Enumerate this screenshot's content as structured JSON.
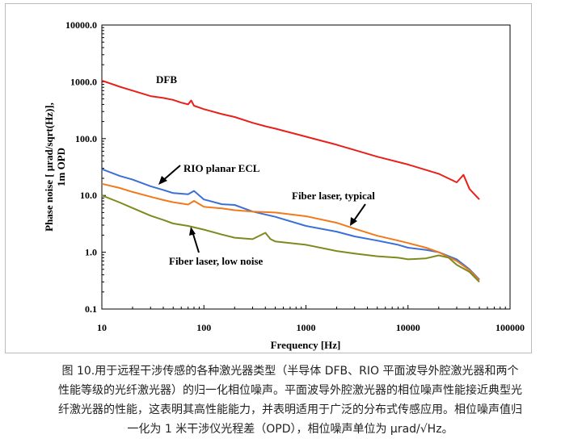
{
  "chart_data": {
    "type": "line",
    "xlabel": "Frequency [Hz]",
    "ylabel_line1": "Phase noise [ μrad/sqrt(Hz)],",
    "ylabel_line2": "1m OPD",
    "xscale": "log",
    "yscale": "log",
    "xlim": [
      10,
      100000
    ],
    "ylim": [
      0.1,
      10000
    ],
    "x_ticks": [
      "10",
      "100",
      "1000",
      "10000",
      "100000"
    ],
    "y_ticks": [
      "0.1",
      "1.0",
      "10.0",
      "100.0",
      "1000.0",
      "10000.0"
    ],
    "grid": false,
    "series": [
      {
        "name": "DFB",
        "color": "#e8201a",
        "x": [
          10,
          15,
          20,
          30,
          40,
          50,
          60,
          70,
          75,
          80,
          100,
          150,
          200,
          300,
          400,
          500,
          1000,
          2000,
          3000,
          5000,
          10000,
          20000,
          30000,
          35000,
          40000,
          50000
        ],
        "y": [
          1050,
          820,
          700,
          560,
          520,
          480,
          430,
          400,
          470,
          380,
          330,
          270,
          240,
          190,
          165,
          150,
          108,
          78,
          63,
          48,
          35,
          24,
          17,
          23,
          13,
          8.5
        ]
      },
      {
        "name": "RIO planar ECL",
        "color": "#3a6fd8",
        "x": [
          10,
          15,
          20,
          30,
          40,
          50,
          70,
          80,
          100,
          150,
          200,
          300,
          500,
          1000,
          2000,
          3000,
          5000,
          8000,
          10000,
          15000,
          20000,
          30000,
          40000,
          50000
        ],
        "y": [
          29,
          22,
          19,
          14.5,
          12.5,
          11,
          10.5,
          12,
          8.5,
          7,
          6.8,
          5.2,
          4.2,
          2.9,
          2.3,
          1.9,
          1.6,
          1.35,
          1.2,
          1.1,
          1.0,
          0.75,
          0.5,
          0.33
        ]
      },
      {
        "name": "Fiber laser, typical",
        "color": "#f07a1c",
        "x": [
          10,
          15,
          20,
          30,
          40,
          50,
          70,
          80,
          100,
          150,
          200,
          300,
          500,
          1000,
          2000,
          3000,
          5000,
          8000,
          10000,
          15000,
          20000,
          30000,
          40000,
          50000
        ],
        "y": [
          16,
          13.5,
          11.5,
          9.5,
          8.3,
          7.6,
          6.9,
          8,
          6.3,
          5.9,
          5.5,
          5.2,
          5.0,
          4.3,
          3.3,
          2.6,
          1.95,
          1.6,
          1.45,
          1.2,
          1.0,
          0.7,
          0.48,
          0.32
        ]
      },
      {
        "name": "Fiber laser, low noise",
        "color": "#7f8a1e",
        "x": [
          10,
          15,
          20,
          30,
          40,
          50,
          70,
          100,
          150,
          200,
          300,
          400,
          450,
          500,
          1000,
          2000,
          3000,
          5000,
          8000,
          10000,
          15000,
          20000,
          25000,
          30000,
          40000,
          50000
        ],
        "y": [
          10,
          7.5,
          6,
          4.4,
          3.7,
          3.2,
          2.9,
          2.5,
          2.05,
          1.8,
          1.7,
          2.2,
          1.7,
          1.55,
          1.35,
          1.05,
          0.95,
          0.85,
          0.8,
          0.75,
          0.78,
          0.88,
          0.8,
          0.6,
          0.45,
          0.3
        ]
      }
    ],
    "annotations": [
      {
        "text": "DFB"
      },
      {
        "text": "RIO planar ECL"
      },
      {
        "text": "Fiber laser, typical"
      },
      {
        "text": "Fiber laser, low noise"
      }
    ]
  },
  "caption": {
    "line1": "图 10.用于远程干涉传感的各种激光器类型（半导体 DFB、RIO 平面波导外腔激光器和两个",
    "line2": "性能等级的光纤激光器）的归一化相位噪声。平面波导外腔激光器的相位噪声性能接近典型光",
    "line3": "纤激光器的性能，这表明其高性能能力，并表明适用于广泛的分布式传感应用。相位噪声值归",
    "line4": "一化为 1 米干涉仪光程差（OPD），相位噪声单位为 μrad/√Hz。"
  }
}
